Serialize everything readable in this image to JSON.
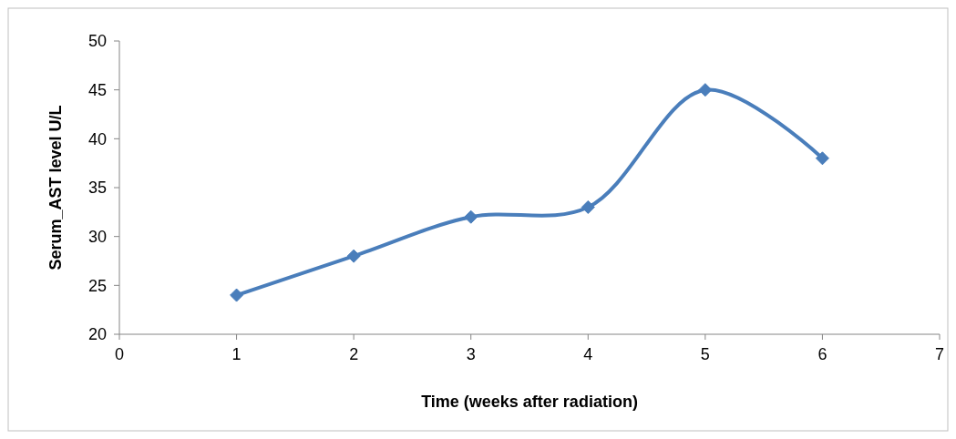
{
  "chart_data": {
    "type": "line",
    "xlabel": "Time (weeks after radiation)",
    "ylabel": "Serum_AST level U/L",
    "x": [
      1,
      2,
      3,
      4,
      5,
      6
    ],
    "series": [
      {
        "color": "#4a7ebb",
        "values": [
          24,
          28,
          32,
          33,
          45,
          38
        ]
      }
    ],
    "xlim": [
      0,
      7
    ],
    "xticks": [
      0,
      1,
      2,
      3,
      4,
      5,
      6,
      7
    ],
    "ylim": [
      20,
      50
    ],
    "yticks": [
      20,
      25,
      30,
      35,
      40,
      45,
      50
    ],
    "grid": false,
    "marker": "diamond",
    "line_style": "solid"
  }
}
